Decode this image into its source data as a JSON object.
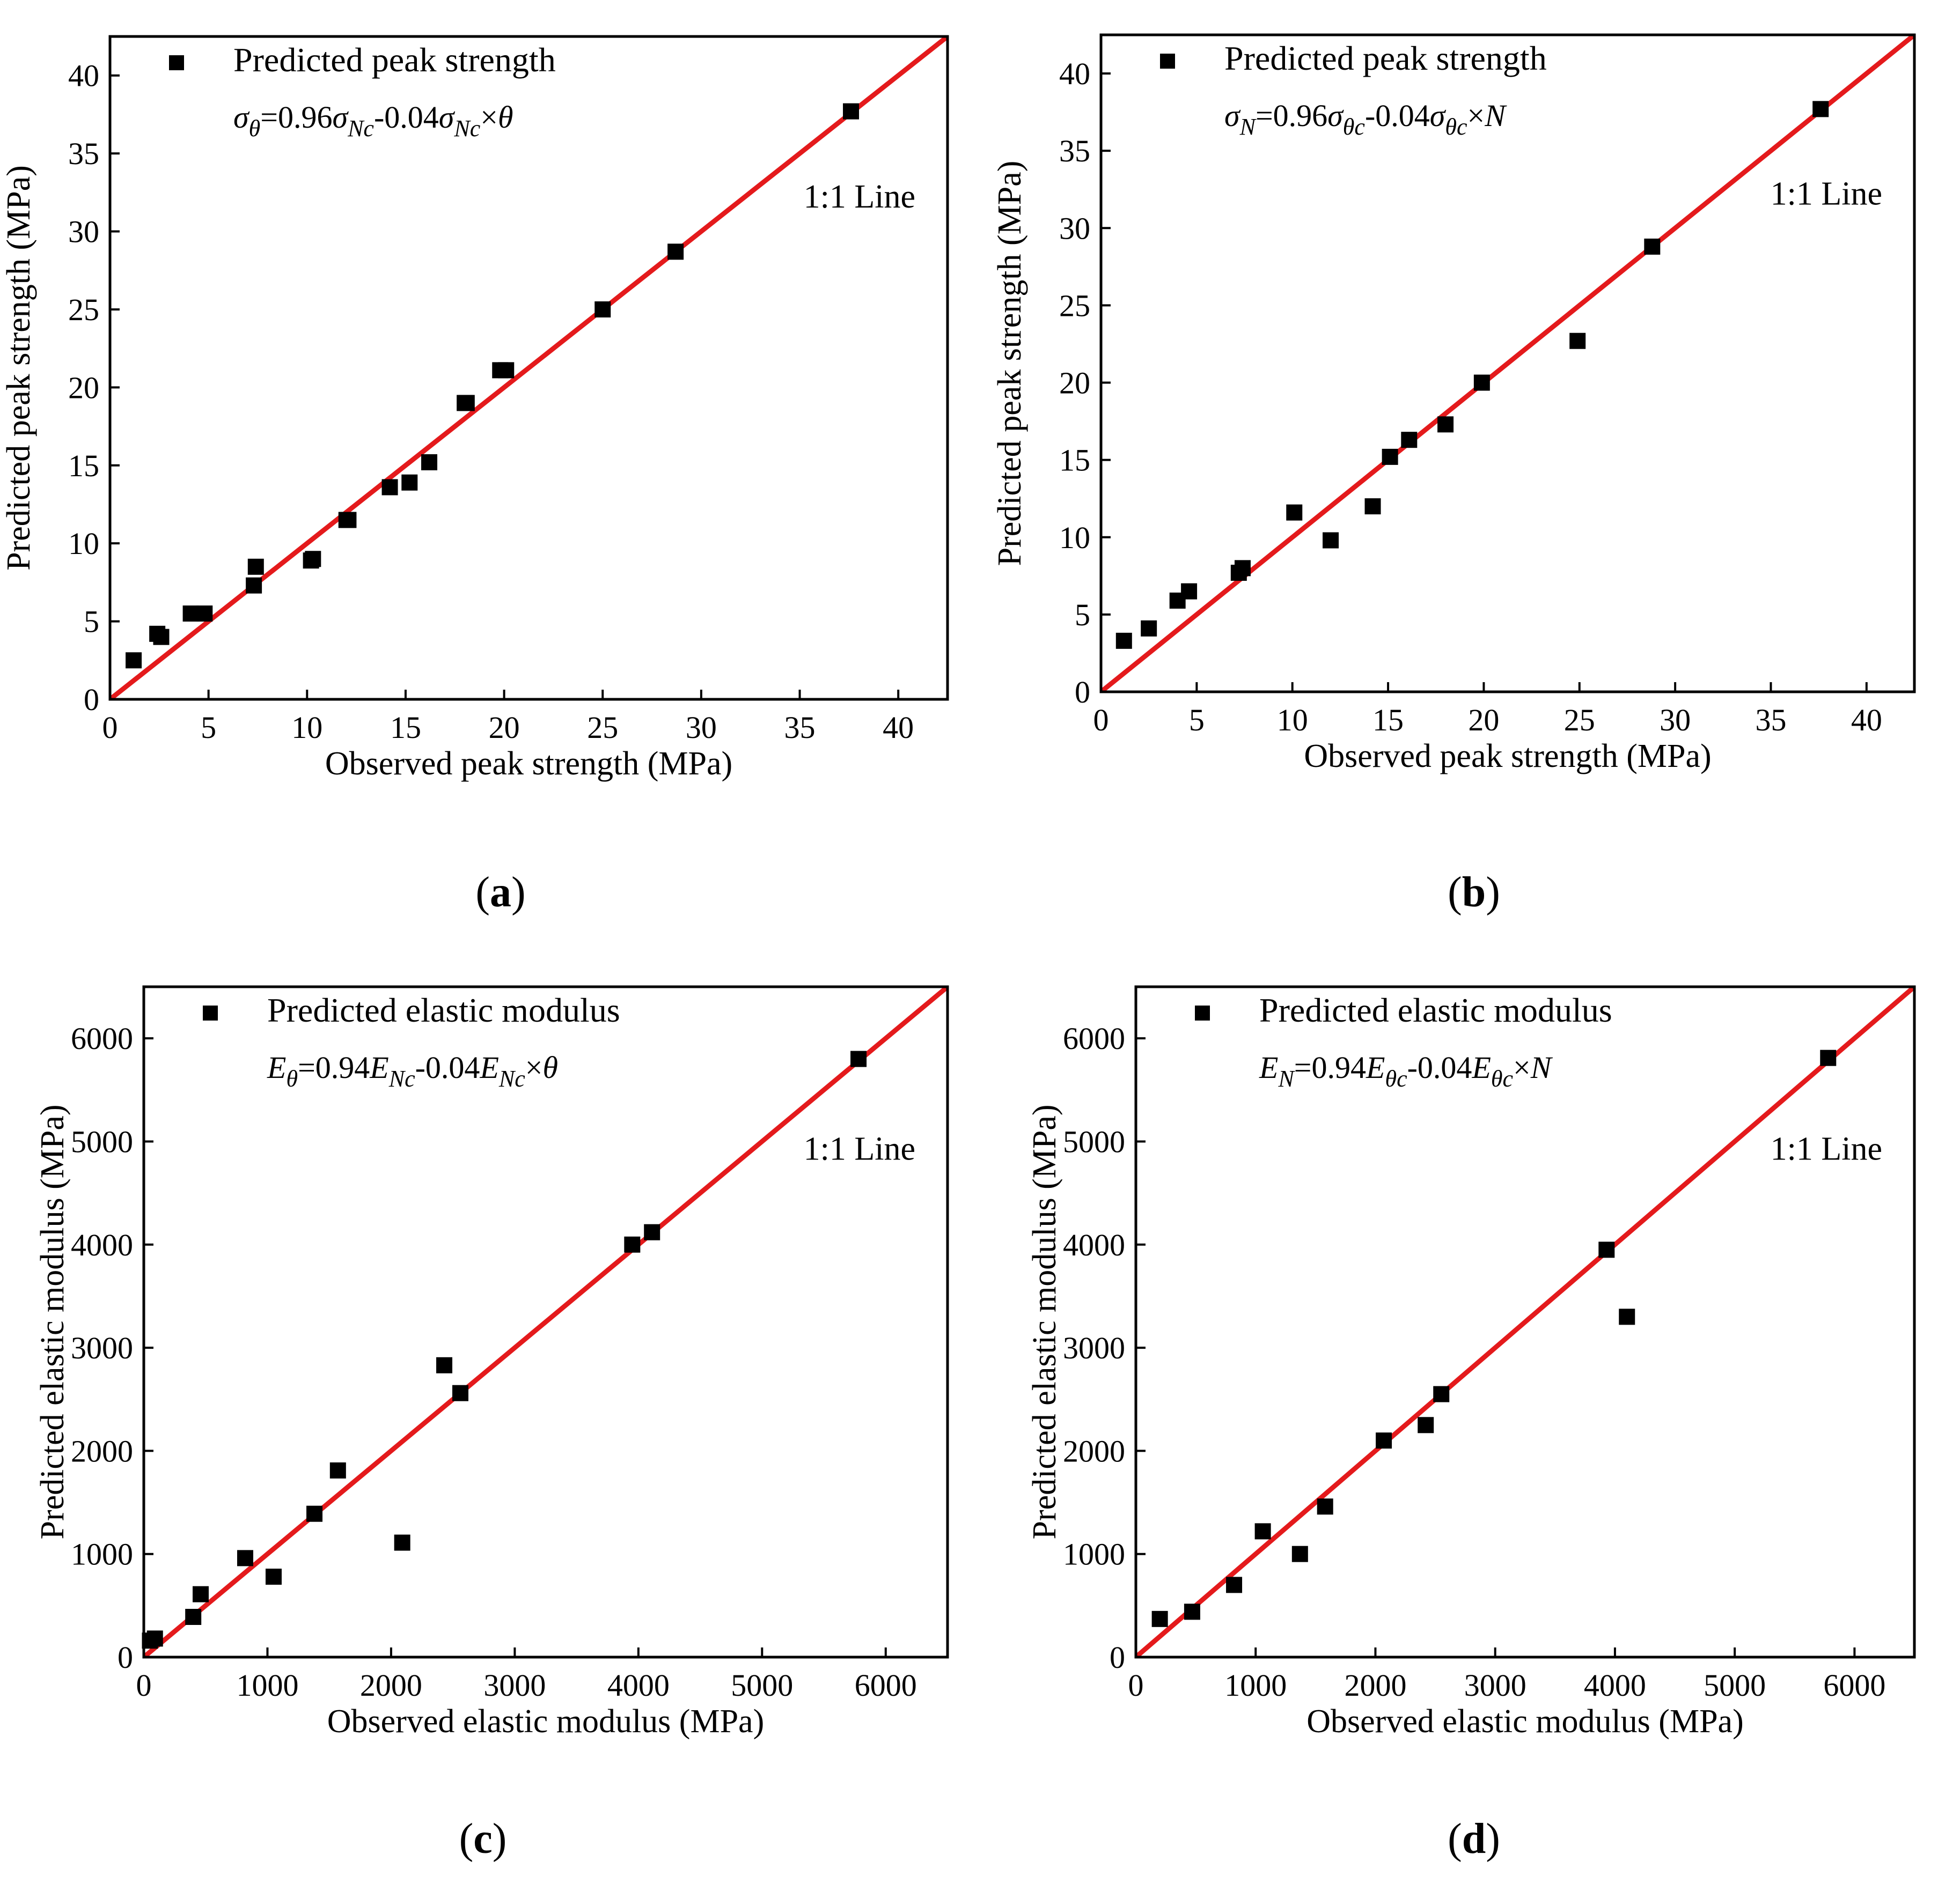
{
  "chart_data": [
    {
      "type": "scatter",
      "panel_label": "a",
      "legend": "Predicted peak strength",
      "equation": {
        "lhs": "σ",
        "lhs_sub": "θ",
        "rest": [
          {
            "t": "=0.96",
            "it": false
          },
          {
            "t": "σ",
            "it": true
          },
          {
            "t": "Nc",
            "it": true,
            "sub": true
          },
          {
            "t": "-0.04",
            "it": false
          },
          {
            "t": "σ",
            "it": true
          },
          {
            "t": "Nc",
            "it": true,
            "sub": true
          },
          {
            "t": "×",
            "it": false
          },
          {
            "t": "θ",
            "it": true
          }
        ]
      },
      "line_label": "1:1 Line",
      "xlabel": "Observed peak strength (MPa)",
      "ylabel": "Predicted peak strength (MPa)",
      "xlim": [
        0,
        42.5
      ],
      "ylim": [
        0,
        42.5
      ],
      "xticks": [
        0,
        5,
        10,
        15,
        20,
        25,
        30,
        35,
        40
      ],
      "yticks": [
        0,
        5,
        10,
        15,
        20,
        25,
        30,
        35,
        40
      ],
      "x": [
        1.2,
        2.4,
        2.6,
        4.1,
        4.8,
        7.3,
        7.4,
        10.2,
        10.3,
        12.0,
        12.1,
        14.2,
        15.2,
        16.2,
        18.0,
        18.1,
        19.8,
        20.1,
        25.0,
        28.7,
        37.6
      ],
      "y": [
        2.5,
        4.2,
        4.0,
        5.5,
        5.5,
        7.3,
        8.5,
        8.9,
        9.0,
        11.5,
        11.5,
        13.6,
        13.9,
        15.2,
        19.0,
        19.0,
        21.1,
        21.1,
        25.0,
        28.7,
        37.7
      ]
    },
    {
      "type": "scatter",
      "panel_label": "b",
      "legend": "Predicted peak strength",
      "equation": {
        "lhs": "σ",
        "lhs_sub": "N",
        "rest": [
          {
            "t": "=0.96",
            "it": false
          },
          {
            "t": "σ",
            "it": true
          },
          {
            "t": "θc",
            "it": true,
            "sub": true
          },
          {
            "t": "-0.04",
            "it": false
          },
          {
            "t": "σ",
            "it": true
          },
          {
            "t": "θc",
            "it": true,
            "sub": true
          },
          {
            "t": "×",
            "it": false
          },
          {
            "t": "N",
            "it": true
          }
        ]
      },
      "line_label": "1:1 Line",
      "xlabel": "Observed peak strength (MPa)",
      "ylabel": "Predicted peak strength (MPa)",
      "xlim": [
        0,
        42.5
      ],
      "ylim": [
        0,
        42.5
      ],
      "xticks": [
        0,
        5,
        10,
        15,
        20,
        25,
        30,
        35,
        40
      ],
      "yticks": [
        0,
        5,
        10,
        15,
        20,
        25,
        30,
        35,
        40
      ],
      "x": [
        1.2,
        2.5,
        4.0,
        4.6,
        7.2,
        7.4,
        10.1,
        12.0,
        14.2,
        15.1,
        16.1,
        18.0,
        19.9,
        24.9,
        28.8,
        37.6
      ],
      "y": [
        3.3,
        4.1,
        5.9,
        6.5,
        7.7,
        8.0,
        11.6,
        9.8,
        12.0,
        15.2,
        16.3,
        17.3,
        20.0,
        22.7,
        28.8,
        37.7
      ]
    },
    {
      "type": "scatter",
      "panel_label": "c",
      "legend": "Predicted elastic modulus",
      "equation": {
        "lhs": "E",
        "lhs_sub": "θ",
        "rest": [
          {
            "t": "=0.94",
            "it": false
          },
          {
            "t": "E",
            "it": true
          },
          {
            "t": "Nc",
            "it": true,
            "sub": true
          },
          {
            "t": "-0.04",
            "it": false
          },
          {
            "t": "E",
            "it": true
          },
          {
            "t": "Nc",
            "it": true,
            "sub": true
          },
          {
            "t": "×",
            "it": false
          },
          {
            "t": "θ",
            "it": true
          }
        ]
      },
      "line_label": "1:1 Line",
      "xlabel": "Observed elastic modulus (MPa)",
      "ylabel": "Predicted elastic modulus (MPa)",
      "xlim": [
        0,
        6500
      ],
      "ylim": [
        0,
        6500
      ],
      "xticks": [
        0,
        1000,
        2000,
        3000,
        4000,
        5000,
        6000
      ],
      "yticks": [
        0,
        1000,
        2000,
        3000,
        4000,
        5000,
        6000
      ],
      "x": [
        50,
        90,
        400,
        460,
        820,
        1050,
        1380,
        1570,
        2090,
        2430,
        2560,
        3950,
        4110,
        5780
      ],
      "y": [
        160,
        180,
        390,
        610,
        960,
        780,
        1390,
        1810,
        1110,
        2830,
        2560,
        4000,
        4120,
        5800
      ]
    },
    {
      "type": "scatter",
      "panel_label": "d",
      "legend": "Predicted elastic modulus",
      "equation": {
        "lhs": "E",
        "lhs_sub": "N",
        "rest": [
          {
            "t": "=0.94",
            "it": false
          },
          {
            "t": "E",
            "it": true
          },
          {
            "t": "θc",
            "it": true,
            "sub": true
          },
          {
            "t": "-0.04",
            "it": false
          },
          {
            "t": "E",
            "it": true
          },
          {
            "t": "θc",
            "it": true,
            "sub": true
          },
          {
            "t": "×",
            "it": false
          },
          {
            "t": "N",
            "it": true
          }
        ]
      },
      "line_label": "1:1 Line",
      "xlabel": "Observed elastic modulus (MPa)",
      "ylabel": "Predicted elastic modulus (MPa)",
      "xlim": [
        0,
        6500
      ],
      "ylim": [
        0,
        6500
      ],
      "xticks": [
        0,
        1000,
        2000,
        3000,
        4000,
        5000,
        6000
      ],
      "yticks": [
        0,
        1000,
        2000,
        3000,
        4000,
        5000,
        6000
      ],
      "x": [
        200,
        470,
        820,
        1060,
        1370,
        1580,
        2070,
        2420,
        2550,
        3930,
        4100,
        5780
      ],
      "y": [
        370,
        440,
        700,
        1220,
        1000,
        1460,
        2100,
        2250,
        2550,
        3950,
        3300,
        5810
      ]
    }
  ],
  "colors": {
    "ref_line": "#e41a1c",
    "points": "#000000"
  }
}
